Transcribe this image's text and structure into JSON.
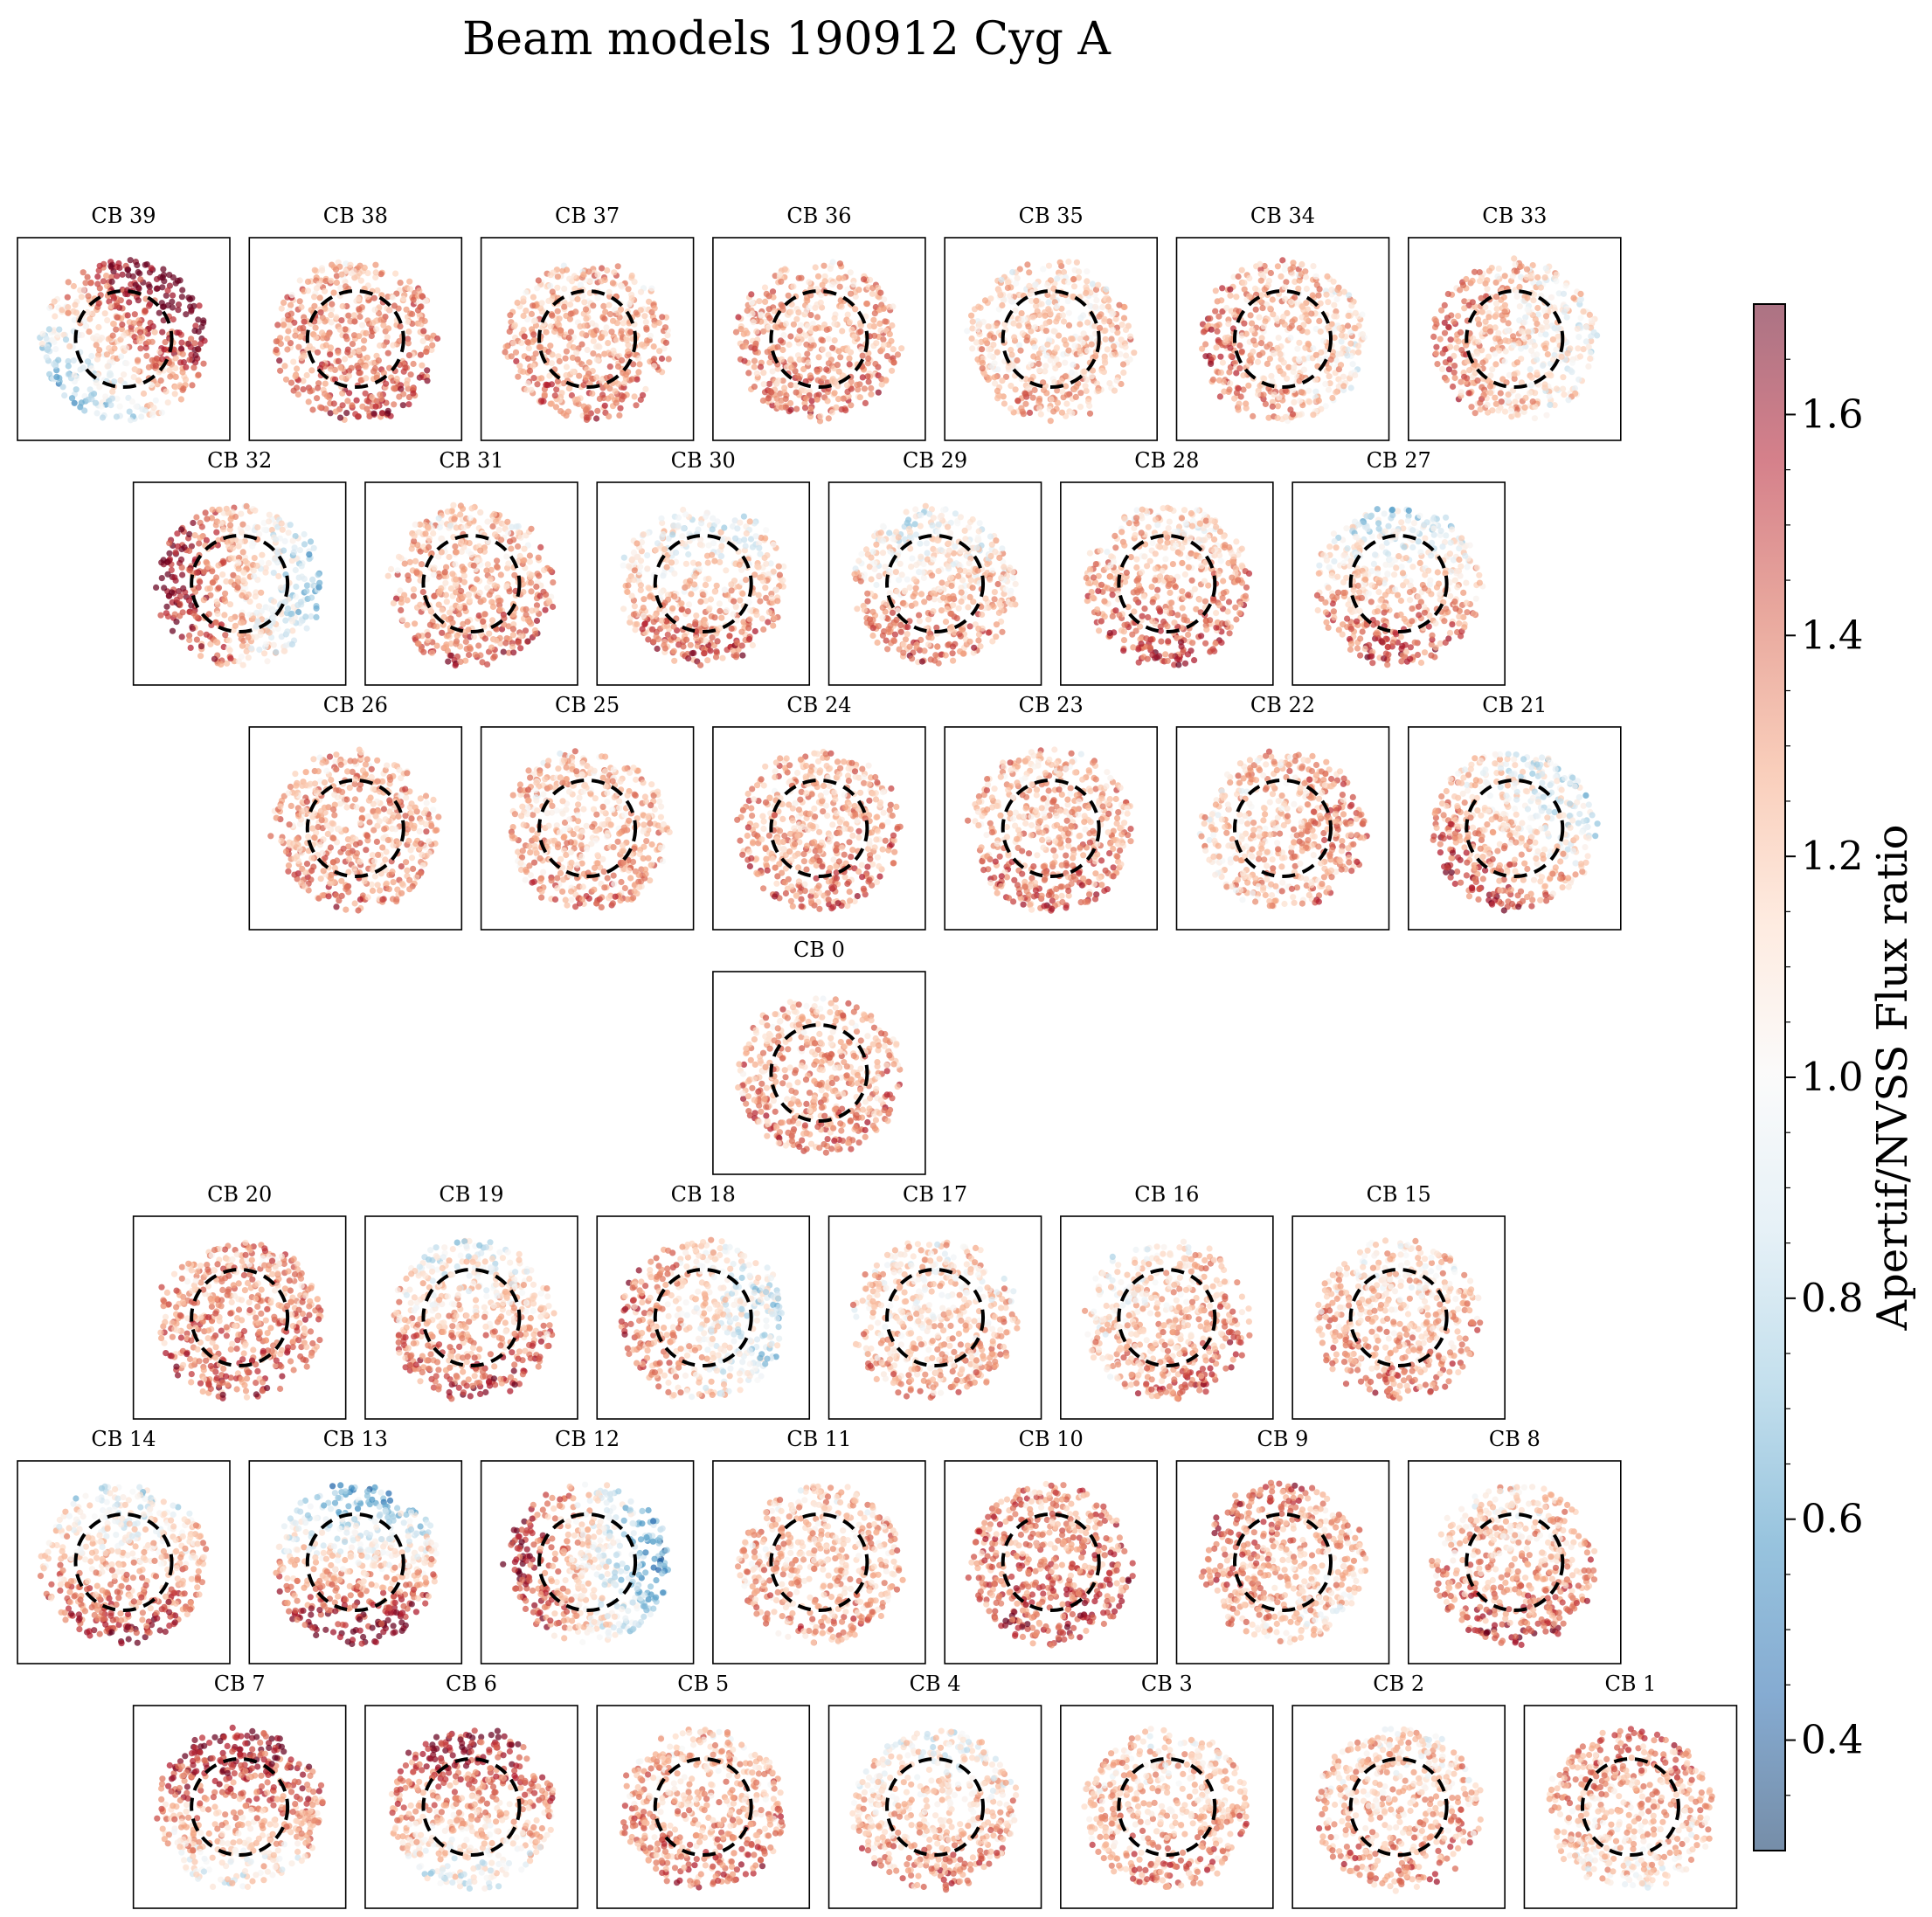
{
  "chart_data": {
    "type": "scatter",
    "title": "Beam models 190912 Cyg A",
    "colorbar": {
      "label": "Apertif/NVSS Flux ratio",
      "range": [
        0.3,
        1.7
      ],
      "ticks": [
        0.4,
        0.6,
        0.8,
        1.0,
        1.2,
        1.4,
        1.6
      ],
      "tick_labels": [
        "0.4",
        "0.6",
        "0.8",
        "1.0",
        "1.2",
        "1.4",
        "1.6"
      ],
      "colormap": "RdBu_r",
      "position": "right"
    },
    "reference_circle": {
      "style": "dashed",
      "color": "#000000"
    },
    "rows": [
      [
        "CB 39",
        "CB 38",
        "CB 37",
        "CB 36",
        "CB 35",
        "CB 34",
        "CB 33"
      ],
      [
        "CB 32",
        "CB 31",
        "CB 30",
        "CB 29",
        "CB 28",
        "CB 27"
      ],
      [
        "CB 26",
        "CB 25",
        "CB 24",
        "CB 23",
        "CB 22",
        "CB 21"
      ],
      [
        "CB 0"
      ],
      [
        "CB 20",
        "CB 19",
        "CB 18",
        "CB 17",
        "CB 16",
        "CB 15"
      ],
      [
        "CB 14",
        "CB 13",
        "CB 12",
        "CB 11",
        "CB 10",
        "CB 9",
        "CB 8"
      ],
      [
        "CB 7",
        "CB 6",
        "CB 5",
        "CB 4",
        "CB 3",
        "CB 2",
        "CB 1"
      ]
    ],
    "beams": {
      "CB 39": {
        "gradient_dir": "top-right",
        "gradient_strength": 0.55,
        "mean_ratio": 1.25
      },
      "CB 38": {
        "gradient_dir": "bottom",
        "gradient_strength": 0.12,
        "mean_ratio": 1.3
      },
      "CB 37": {
        "gradient_dir": "bottom",
        "gradient_strength": 0.1,
        "mean_ratio": 1.25
      },
      "CB 36": {
        "gradient_dir": "bottom",
        "gradient_strength": 0.1,
        "mean_ratio": 1.25
      },
      "CB 35": {
        "gradient_dir": "bottom",
        "gradient_strength": 0.08,
        "mean_ratio": 1.15
      },
      "CB 34": {
        "gradient_dir": "left",
        "gradient_strength": 0.15,
        "mean_ratio": 1.2
      },
      "CB 33": {
        "gradient_dir": "left",
        "gradient_strength": 0.2,
        "mean_ratio": 1.15
      },
      "CB 32": {
        "gradient_dir": "left",
        "gradient_strength": 0.5,
        "mean_ratio": 1.2
      },
      "CB 31": {
        "gradient_dir": "bottom",
        "gradient_strength": 0.15,
        "mean_ratio": 1.25
      },
      "CB 30": {
        "gradient_dir": "bottom",
        "gradient_strength": 0.25,
        "mean_ratio": 1.15
      },
      "CB 29": {
        "gradient_dir": "bottom",
        "gradient_strength": 0.25,
        "mean_ratio": 1.15
      },
      "CB 28": {
        "gradient_dir": "bottom",
        "gradient_strength": 0.2,
        "mean_ratio": 1.25
      },
      "CB 27": {
        "gradient_dir": "bottom",
        "gradient_strength": 0.35,
        "mean_ratio": 1.15
      },
      "CB 26": {
        "gradient_dir": "bottom",
        "gradient_strength": 0.08,
        "mean_ratio": 1.25
      },
      "CB 25": {
        "gradient_dir": "bottom",
        "gradient_strength": 0.08,
        "mean_ratio": 1.2
      },
      "CB 24": {
        "gradient_dir": "bottom",
        "gradient_strength": 0.08,
        "mean_ratio": 1.25
      },
      "CB 23": {
        "gradient_dir": "bottom",
        "gradient_strength": 0.1,
        "mean_ratio": 1.25
      },
      "CB 22": {
        "gradient_dir": "right",
        "gradient_strength": 0.12,
        "mean_ratio": 1.2
      },
      "CB 21": {
        "gradient_dir": "bottom-left",
        "gradient_strength": 0.35,
        "mean_ratio": 1.15
      },
      "CB 0": {
        "gradient_dir": "bottom",
        "gradient_strength": 0.08,
        "mean_ratio": 1.25
      },
      "CB 20": {
        "gradient_dir": "bottom",
        "gradient_strength": 0.1,
        "mean_ratio": 1.3
      },
      "CB 19": {
        "gradient_dir": "bottom",
        "gradient_strength": 0.3,
        "mean_ratio": 1.2
      },
      "CB 18": {
        "gradient_dir": "left",
        "gradient_strength": 0.3,
        "mean_ratio": 1.1
      },
      "CB 17": {
        "gradient_dir": "bottom",
        "gradient_strength": 0.1,
        "mean_ratio": 1.15
      },
      "CB 16": {
        "gradient_dir": "bottom-right",
        "gradient_strength": 0.2,
        "mean_ratio": 1.2
      },
      "CB 15": {
        "gradient_dir": "bottom",
        "gradient_strength": 0.15,
        "mean_ratio": 1.2
      },
      "CB 14": {
        "gradient_dir": "bottom",
        "gradient_strength": 0.35,
        "mean_ratio": 1.2
      },
      "CB 13": {
        "gradient_dir": "bottom",
        "gradient_strength": 0.55,
        "mean_ratio": 1.15
      },
      "CB 12": {
        "gradient_dir": "left",
        "gradient_strength": 0.55,
        "mean_ratio": 1.1
      },
      "CB 11": {
        "gradient_dir": "bottom",
        "gradient_strength": 0.08,
        "mean_ratio": 1.2
      },
      "CB 10": {
        "gradient_dir": "bottom",
        "gradient_strength": 0.12,
        "mean_ratio": 1.35
      },
      "CB 9": {
        "gradient_dir": "top-left",
        "gradient_strength": 0.15,
        "mean_ratio": 1.25
      },
      "CB 8": {
        "gradient_dir": "bottom",
        "gradient_strength": 0.2,
        "mean_ratio": 1.25
      },
      "CB 7": {
        "gradient_dir": "top",
        "gradient_strength": 0.35,
        "mean_ratio": 1.3
      },
      "CB 6": {
        "gradient_dir": "top",
        "gradient_strength": 0.35,
        "mean_ratio": 1.25
      },
      "CB 5": {
        "gradient_dir": "bottom",
        "gradient_strength": 0.1,
        "mean_ratio": 1.25
      },
      "CB 4": {
        "gradient_dir": "bottom",
        "gradient_strength": 0.2,
        "mean_ratio": 1.15
      },
      "CB 3": {
        "gradient_dir": "bottom",
        "gradient_strength": 0.12,
        "mean_ratio": 1.2
      },
      "CB 2": {
        "gradient_dir": "bottom",
        "gradient_strength": 0.12,
        "mean_ratio": 1.2
      },
      "CB 1": {
        "gradient_dir": "top",
        "gradient_strength": 0.15,
        "mean_ratio": 1.2
      }
    }
  }
}
